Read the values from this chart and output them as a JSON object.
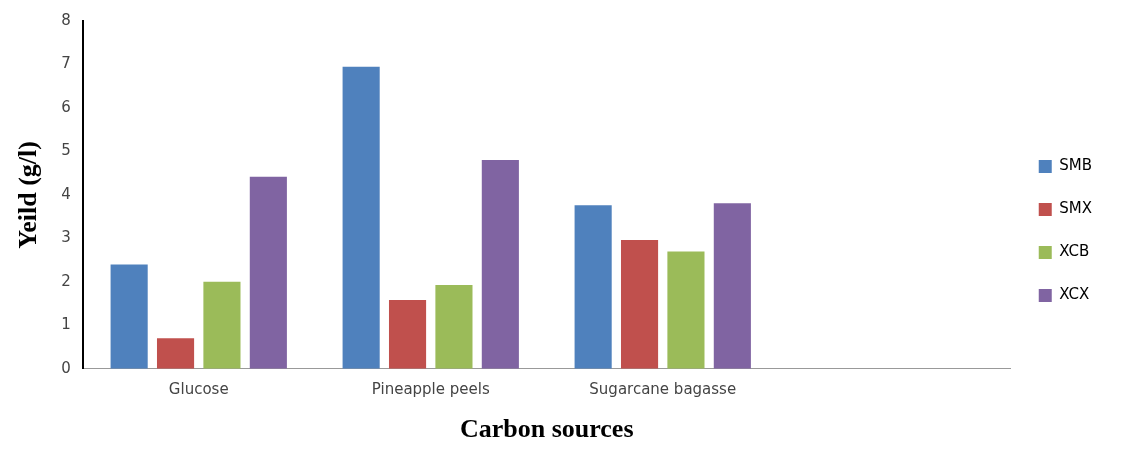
{
  "chart_data": {
    "type": "bar",
    "xlabel": "Carbon sources",
    "ylabel": "Yeild (g/l)",
    "categories": [
      "Glucose",
      "Pineapple peels",
      "Sugarcane bagasse",
      null
    ],
    "series": [
      {
        "name": "SMB",
        "color": "#4f81bd",
        "values": [
          2.4,
          6.95,
          3.76,
          null
        ]
      },
      {
        "name": "SMX",
        "color": "#c0504d",
        "values": [
          0.7,
          1.58,
          2.96,
          null
        ]
      },
      {
        "name": "XCB",
        "color": "#9bbb59",
        "values": [
          2.0,
          1.93,
          2.7,
          null
        ]
      },
      {
        "name": "XCX",
        "color": "#8064a2",
        "values": [
          4.42,
          4.8,
          3.81,
          null
        ]
      }
    ],
    "ylim": [
      0,
      8
    ],
    "yticks": [
      0,
      1,
      2,
      3,
      4,
      5,
      6,
      7,
      8
    ],
    "grid": false,
    "legend": "right"
  }
}
